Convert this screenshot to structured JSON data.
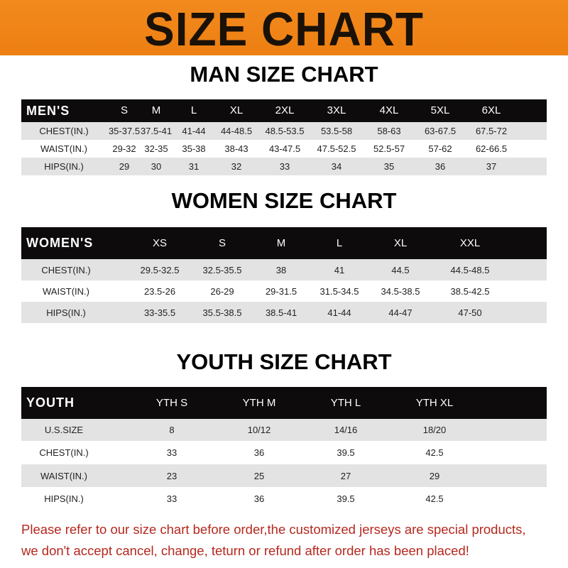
{
  "banner_title": "SIZE CHART",
  "men": {
    "title": "MAN SIZE CHART",
    "header": [
      "MEN'S",
      "S",
      "M",
      "L",
      "XL",
      "2XL",
      "3XL",
      "4XL",
      "5XL",
      "6XL"
    ],
    "rows": [
      [
        "CHEST(IN.)",
        "35-37.5",
        "37.5-41",
        "41-44",
        "44-48.5",
        "48.5-53.5",
        "53.5-58",
        "58-63",
        "63-67.5",
        "67.5-72"
      ],
      [
        "WAIST(IN.)",
        "29-32",
        "32-35",
        "35-38",
        "38-43",
        "43-47.5",
        "47.5-52.5",
        "52.5-57",
        "57-62",
        "62-66.5"
      ],
      [
        "HIPS(IN.)",
        "29",
        "30",
        "31",
        "32",
        "33",
        "34",
        "35",
        "36",
        "37"
      ]
    ]
  },
  "women": {
    "title": "WOMEN SIZE CHART",
    "header": [
      "WOMEN'S",
      "XS",
      "S",
      "M",
      "L",
      "XL",
      "XXL"
    ],
    "rows": [
      [
        "CHEST(IN.)",
        "29.5-32.5",
        "32.5-35.5",
        "38",
        "41",
        "44.5",
        "44.5-48.5"
      ],
      [
        "WAIST(IN.)",
        "23.5-26",
        "26-29",
        "29-31.5",
        "31.5-34.5",
        "34.5-38.5",
        "38.5-42.5"
      ],
      [
        "HIPS(IN.)",
        "33-35.5",
        "35.5-38.5",
        "38.5-41",
        "41-44",
        "44-47",
        "47-50"
      ]
    ]
  },
  "youth": {
    "title": "YOUTH SIZE CHART",
    "header": [
      "YOUTH",
      "YTH S",
      "YTH M",
      "YTH L",
      "YTH XL"
    ],
    "rows": [
      [
        "U.S.SIZE",
        "8",
        "10/12",
        "14/16",
        "18/20"
      ],
      [
        "CHEST(IN.)",
        "33",
        "36",
        "39.5",
        "42.5"
      ],
      [
        "WAIST(IN.)",
        "23",
        "25",
        "27",
        "29"
      ],
      [
        "HIPS(IN.)",
        "33",
        "36",
        "39.5",
        "42.5"
      ]
    ]
  },
  "notice": {
    "line1": "Please refer to our size chart before order,the customized jerseys are special products,",
    "line2": "we don't accept cancel, change, teturn or refund after order has been placed!"
  },
  "colors": {
    "banner": "#ee7f12",
    "header_row": "#0d0b0b",
    "notice_text": "#b5281e"
  }
}
